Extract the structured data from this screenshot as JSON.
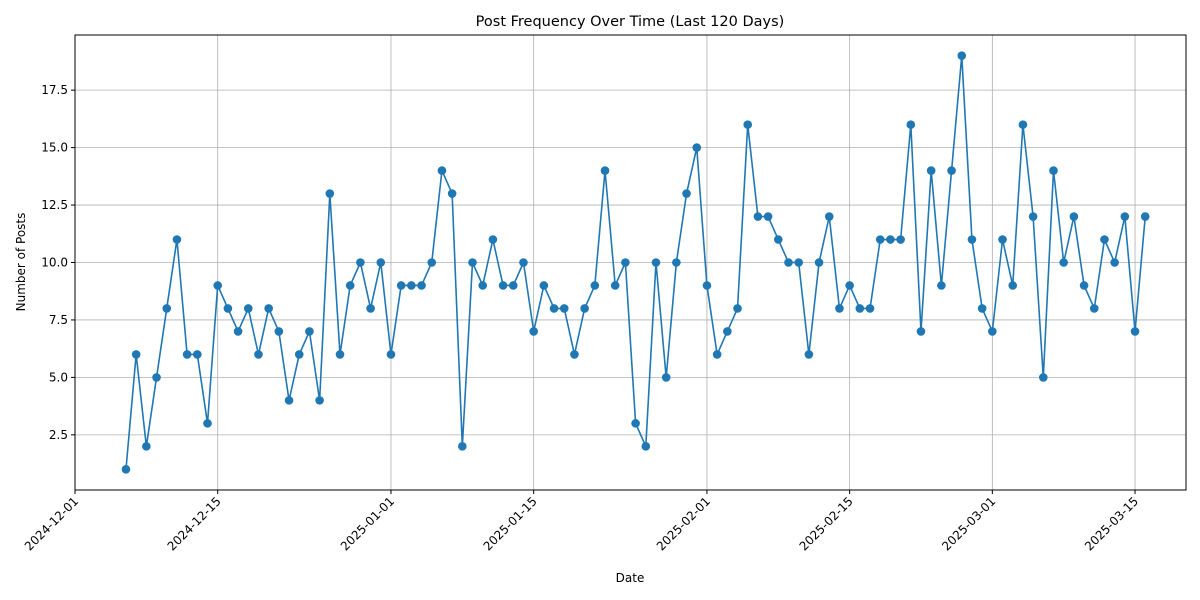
{
  "chart_data": {
    "type": "line",
    "title": "Post Frequency Over Time (Last 120 Days)",
    "xlabel": "Date",
    "ylabel": "Number of Posts",
    "x_is_date": true,
    "xlim": [
      "2024-12-01",
      "2025-03-20"
    ],
    "ylim": [
      0.1,
      19.9
    ],
    "x_ticks": [
      "2024-12-01",
      "2024-12-15",
      "2025-01-01",
      "2025-01-15",
      "2025-02-01",
      "2025-02-15",
      "2025-03-01",
      "2025-03-15"
    ],
    "y_ticks": [
      "2.5",
      "5.0",
      "7.5",
      "10.0",
      "12.5",
      "15.0",
      "17.5"
    ],
    "grid": true,
    "marker": "circle",
    "colors": {
      "line": "#1f77b4",
      "grid": "#b0b0b0",
      "axis": "#000000"
    },
    "series": [
      {
        "start_date": "2024-12-06",
        "values": [
          1,
          6,
          2,
          5,
          8,
          11,
          6,
          6,
          3,
          9,
          8,
          7,
          8,
          6,
          8,
          7,
          4,
          6,
          7,
          4,
          13,
          6,
          9,
          10,
          8,
          10,
          6,
          9,
          9,
          9,
          10,
          14,
          13,
          2,
          10,
          9,
          11,
          9,
          9,
          10,
          7,
          9,
          8,
          8,
          6,
          8,
          9,
          14,
          9,
          10,
          3,
          2,
          10,
          5,
          10,
          13,
          15,
          9,
          6,
          7,
          8,
          16,
          12,
          12,
          11,
          10,
          10,
          6,
          10,
          12,
          8,
          9,
          8,
          8,
          11,
          11,
          11,
          16,
          7,
          14,
          9,
          14,
          19,
          11,
          8,
          7,
          11,
          9,
          16,
          12,
          5,
          14,
          10,
          12,
          9,
          8,
          11,
          10,
          12,
          7,
          12
        ]
      }
    ]
  }
}
